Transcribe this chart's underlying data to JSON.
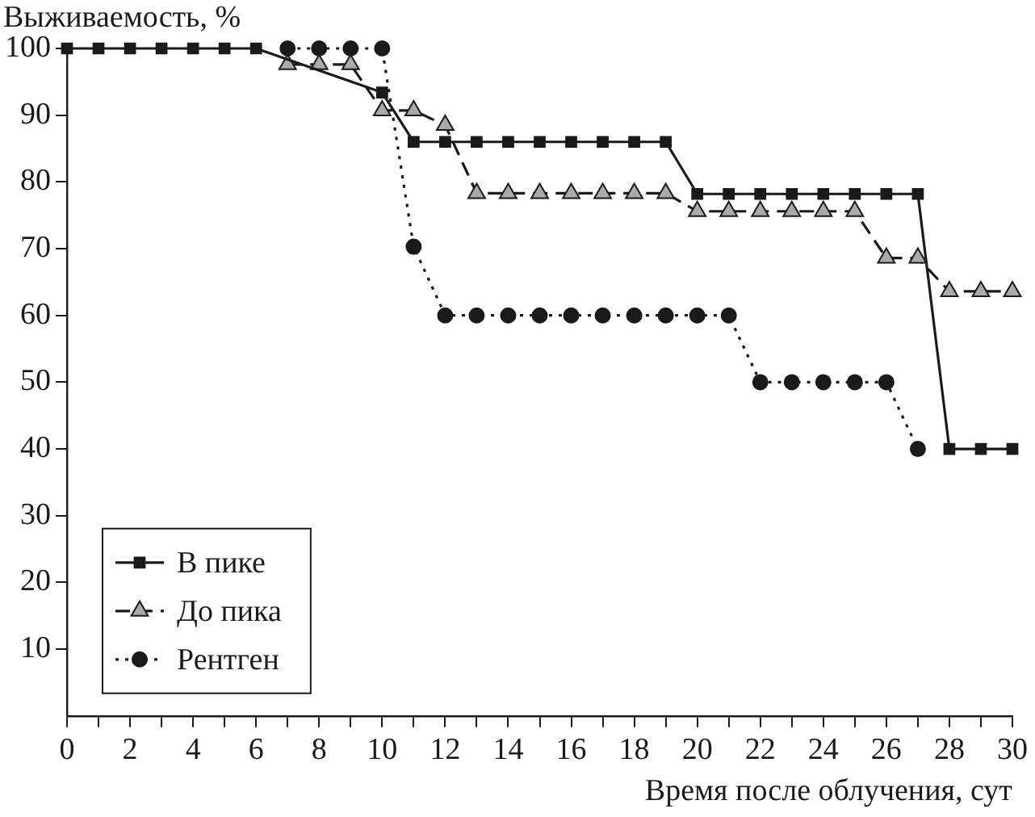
{
  "chart_data": {
    "type": "line",
    "xlabel": "Время после облучения, сут",
    "ylabel": "Выживаемость, %",
    "x": [
      0,
      1,
      2,
      3,
      4,
      5,
      6,
      7,
      8,
      9,
      10,
      11,
      12,
      13,
      14,
      15,
      16,
      17,
      18,
      19,
      20,
      21,
      22,
      23,
      24,
      25,
      26,
      27,
      28,
      29,
      30
    ],
    "xlim": [
      0,
      30
    ],
    "xticks": [
      0,
      {
        "value": 1,
        "label": null
      },
      2,
      {
        "value": 3,
        "label": null
      },
      4,
      {
        "value": 5,
        "label": null
      },
      6,
      {
        "value": 7,
        "label": null
      },
      8,
      {
        "value": 9,
        "label": null
      },
      10,
      {
        "value": 11,
        "label": null
      },
      12,
      {
        "value": 13,
        "label": null
      },
      14,
      {
        "value": 15,
        "label": null
      },
      16,
      {
        "value": 17,
        "label": null
      },
      18,
      {
        "value": 19,
        "label": null
      },
      20,
      {
        "value": 21,
        "label": null
      },
      22,
      {
        "value": 23,
        "label": null
      },
      24,
      {
        "value": 25,
        "label": null
      },
      26,
      {
        "value": 27,
        "label": null
      },
      28,
      {
        "value": 29,
        "label": null
      },
      30
    ],
    "ylim": [
      0,
      100
    ],
    "yticks": [
      10,
      20,
      30,
      40,
      50,
      60,
      70,
      80,
      90,
      100
    ],
    "grid": false,
    "legend": "bottom left",
    "series": [
      {
        "name": "В пике",
        "color": "#1a1a1a",
        "marker": "square",
        "line_style": "solid",
        "values": [
          100,
          100,
          100,
          100,
          100,
          100,
          100,
          null,
          null,
          null,
          93.4,
          86,
          86,
          86,
          86,
          86,
          86,
          86,
          86,
          86,
          78.2,
          78.2,
          78.2,
          78.2,
          78.2,
          78.2,
          78.2,
          78.2,
          40,
          40,
          40
        ]
      },
      {
        "name": "До пика",
        "color": "#aaaaaa",
        "marker": "triangle",
        "line_style": "dashed",
        "values": [
          null,
          null,
          null,
          null,
          null,
          null,
          null,
          97.6,
          97.6,
          97.6,
          90.7,
          90.7,
          88.5,
          78.3,
          78.3,
          78.3,
          78.3,
          78.3,
          78.3,
          78.3,
          75.6,
          75.6,
          75.6,
          75.6,
          75.6,
          75.6,
          68.6,
          68.6,
          63.6,
          63.6,
          63.6
        ]
      },
      {
        "name": "Рентген",
        "color": "#1a1a1a",
        "marker": "circle",
        "line_style": "dotted",
        "values": [
          null,
          null,
          null,
          null,
          null,
          null,
          null,
          100,
          100,
          100,
          100,
          70.3,
          60,
          60,
          60,
          60,
          60,
          60,
          60,
          60,
          60,
          60,
          50,
          50,
          50,
          50,
          50,
          40,
          null,
          null,
          null
        ]
      }
    ]
  }
}
